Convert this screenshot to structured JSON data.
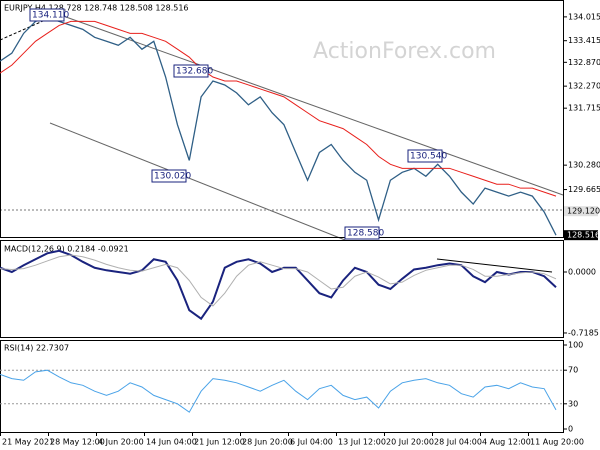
{
  "chart_data": [
    {
      "type": "line",
      "title": "EURJPY,H4 128.728 128.748 128.508 128.516",
      "watermark": "ActionForex.com",
      "series": [
        {
          "color": "#2f5f86",
          "values": [
            132.9,
            133.1,
            133.6,
            133.9,
            134.0,
            133.9,
            133.8,
            133.7,
            133.5,
            133.4,
            133.3,
            133.5,
            133.2,
            133.4,
            132.5,
            131.3,
            130.4,
            132.0,
            132.4,
            132.3,
            132.1,
            131.8,
            132.0,
            131.6,
            131.3,
            130.6,
            129.9,
            130.6,
            130.8,
            130.4,
            130.1,
            129.9,
            128.9,
            129.9,
            130.1,
            130.2,
            130.0,
            130.3,
            130.0,
            129.6,
            129.3,
            129.7,
            129.6,
            129.5,
            129.6,
            129.5,
            129.1,
            128.516
          ]
        },
        {
          "color": "#e8201c",
          "values": [
            132.6,
            132.8,
            133.1,
            133.4,
            133.6,
            133.8,
            133.9,
            133.9,
            133.9,
            133.8,
            133.7,
            133.6,
            133.6,
            133.5,
            133.4,
            133.2,
            133.0,
            132.7,
            132.5,
            132.4,
            132.4,
            132.3,
            132.2,
            132.1,
            132.0,
            131.8,
            131.6,
            131.4,
            131.3,
            131.2,
            131.0,
            130.8,
            130.5,
            130.3,
            130.2,
            130.2,
            130.2,
            130.2,
            130.2,
            130.1,
            130.0,
            129.9,
            129.8,
            129.8,
            129.7,
            129.7,
            129.6,
            129.5
          ]
        }
      ],
      "annotations": [
        "134.110",
        "132.680",
        "130.020",
        "130.540",
        "128.580"
      ],
      "ylim": [
        128.47,
        134.44
      ],
      "yticks": [
        134.015,
        133.415,
        {
          "value": 132.87,
          "label": "132.870"
        },
        {
          "value": 132.27,
          "label": "132.270"
        },
        131.715,
        {
          "value": 130.28,
          "label": "130.280"
        },
        129.665
      ],
      "price_markers": [
        {
          "value": 129.12,
          "label": "129.120"
        },
        {
          "value": 128.516,
          "label": "128.516"
        }
      ]
    },
    {
      "type": "line",
      "title": "MACD(12,26,9) 0.2184 -0.0921",
      "series": [
        {
          "color": "#1a237e",
          "values": [
            0.05,
            0.0,
            0.08,
            0.15,
            0.22,
            0.25,
            0.2,
            0.12,
            0.05,
            0.02,
            0.0,
            -0.02,
            0.02,
            0.15,
            0.12,
            -0.1,
            -0.45,
            -0.55,
            -0.35,
            0.05,
            0.12,
            0.15,
            0.1,
            0.0,
            0.05,
            0.05,
            -0.1,
            -0.25,
            -0.3,
            -0.1,
            0.05,
            0.0,
            -0.15,
            -0.2,
            -0.08,
            0.03,
            0.05,
            0.08,
            0.1,
            0.08,
            -0.05,
            -0.12,
            0.0,
            -0.03,
            0.0,
            0.0,
            -0.05,
            -0.18
          ]
        },
        {
          "color": "#b0b0b0",
          "values": [
            0.04,
            0.03,
            0.04,
            0.08,
            0.13,
            0.18,
            0.2,
            0.18,
            0.14,
            0.09,
            0.05,
            0.02,
            0.01,
            0.05,
            0.09,
            0.05,
            -0.1,
            -0.3,
            -0.4,
            -0.25,
            -0.05,
            0.08,
            0.12,
            0.08,
            0.04,
            0.04,
            0.0,
            -0.1,
            -0.2,
            -0.18,
            -0.05,
            0.0,
            -0.06,
            -0.14,
            -0.12,
            -0.04,
            0.02,
            0.05,
            0.08,
            0.08,
            0.03,
            -0.05,
            -0.05,
            -0.03,
            -0.01,
            0.0,
            -0.02,
            -0.08
          ]
        }
      ],
      "ylim": [
        -0.766,
        0.377
      ],
      "yticks": [
        {
          "value": 0,
          "label": "0.0000"
        },
        -0.7185
      ]
    },
    {
      "type": "line",
      "title": "RSI(14) 22.7307",
      "series": [
        {
          "color": "#4aa3e8",
          "values": [
            65,
            60,
            58,
            68,
            70,
            62,
            55,
            52,
            45,
            40,
            45,
            55,
            50,
            40,
            35,
            30,
            20,
            45,
            60,
            58,
            55,
            50,
            45,
            52,
            58,
            45,
            35,
            48,
            52,
            40,
            35,
            38,
            25,
            45,
            55,
            58,
            60,
            55,
            52,
            42,
            38,
            50,
            52,
            48,
            55,
            50,
            48,
            22.7307
          ]
        }
      ],
      "ylim": [
        0,
        100
      ],
      "yticks": [
        100,
        70,
        30,
        0
      ],
      "levels": [
        70,
        30
      ]
    }
  ],
  "x_axis": {
    "labels": [
      "21 May 2021",
      "28 May 12:00",
      "4 Jun 20:00",
      "14 Jun 04:00",
      "21 Jun 12:00",
      "28 Jun 20:00",
      "6 Jul 04:00",
      "13 Jul 12:00",
      "20 Jul 20:00",
      "28 Jul 04:00",
      "4 Aug 12:00",
      "11 Aug 20:00"
    ]
  }
}
